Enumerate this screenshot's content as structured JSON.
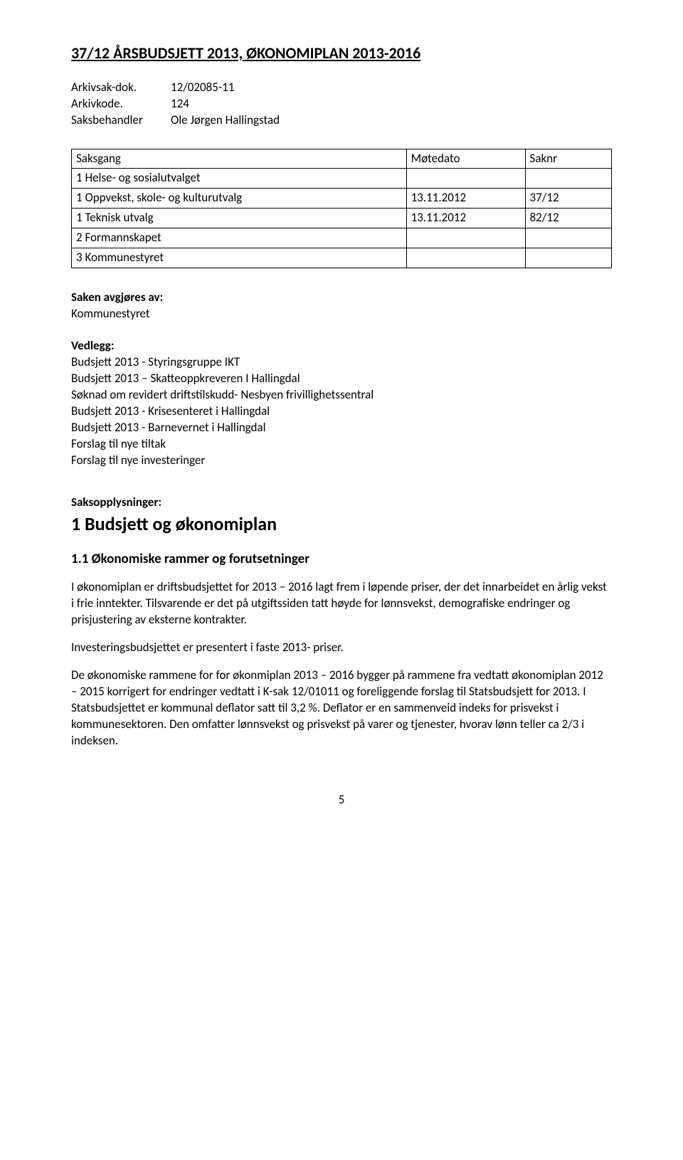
{
  "title": "37/12 ÅRSBUDSJETT 2013, ØKONOMIPLAN 2013-2016",
  "meta": {
    "arkivsak_label": "Arkivsak-dok.",
    "arkivsak_value": "12/02085-11",
    "arkivkode_label": "Arkivkode.",
    "arkivkode_value": "124",
    "saksbehandler_label": "Saksbehandler",
    "saksbehandler_value": "Ole Jørgen Hallingstad"
  },
  "table": {
    "headers": [
      "Saksgang",
      "Møtedato",
      "Saknr"
    ],
    "rows": [
      [
        "1 Helse- og sosialutvalget",
        "",
        ""
      ],
      [
        "1 Oppvekst, skole- og kulturutvalg",
        "13.11.2012",
        "37/12"
      ],
      [
        "1 Teknisk utvalg",
        "13.11.2012",
        "82/12"
      ],
      [
        "2 Formannskapet",
        "",
        ""
      ],
      [
        "3 Kommunestyret",
        "",
        ""
      ]
    ],
    "col_widths": [
      "62%",
      "22%",
      "16%"
    ]
  },
  "saken": {
    "heading": "Saken avgjøres av:",
    "body": "Kommunestyret"
  },
  "vedlegg": {
    "heading": "Vedlegg:",
    "items": [
      "Budsjett 2013 - Styringsgruppe IKT",
      "Budsjett 2013 – Skatteoppkreveren I Hallingdal",
      "Søknad om revidert driftstilskudd- Nesbyen frivillighetssentral",
      "Budsjett 2013 - Krisesenteret i Hallingdal",
      "Budsjett 2013 - Barnevernet i Hallingdal",
      "Forslag til nye tiltak",
      "Forslag til nye investeringer"
    ]
  },
  "saksopplysninger_label": "Saksopplysninger:",
  "budsjett_heading": "1 Budsjett og økonomiplan",
  "okonomiske_heading": "1.1 Økonomiske rammer og forutsetninger",
  "paragraphs": [
    "I økonomiplan er driftsbudsjettet for 2013 – 2016 lagt frem i løpende priser, der det innarbeidet en årlig vekst i frie inntekter. Tilsvarende er det på utgiftssiden tatt høyde for lønnsvekst, demografiske endringer og prisjustering av eksterne kontrakter.",
    "Investeringsbudsjettet er presentert i faste 2013- priser.",
    "De økonomiske rammene for for økonmiplan 2013 – 2016 bygger på rammene fra vedtatt økonomiplan 2012 – 2015 korrigert for endringer vedtatt i K-sak 12/01011 og foreliggende forslag til Statsbudsjett for 2013. I Statsbudsjettet er kommunal deflator satt til 3,2 %. Deflator er en sammenveid indeks for prisvekst i kommunesektoren. Den omfatter lønnsvekst og prisvekst på varer og tjenester, hvorav lønn teller ca 2/3 i indeksen."
  ],
  "page_number": "5"
}
